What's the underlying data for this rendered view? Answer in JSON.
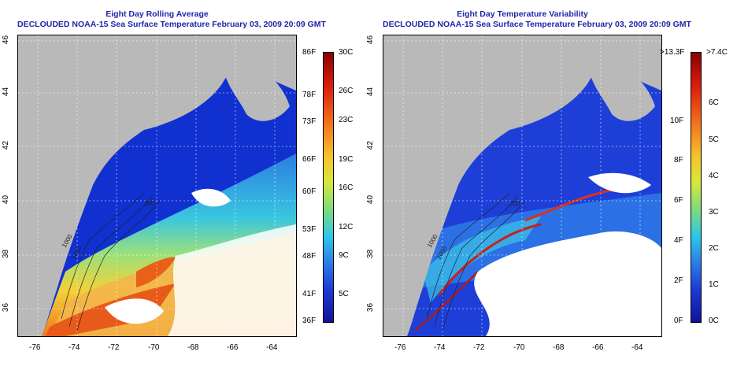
{
  "left_panel": {
    "title_line1": "Eight Day Rolling Average",
    "title_line2": "DECLOUDED NOAA-15 Sea Surface Temperature February 03, 2009 20:09 GMT",
    "lon_ticks": [
      "-76",
      "-74",
      "-72",
      "-70",
      "-68",
      "-66",
      "-64"
    ],
    "lat_ticks": [
      "46",
      "44",
      "42",
      "40",
      "38",
      "36"
    ],
    "colorbar_f": [
      "86F",
      "78F",
      "73F",
      "66F",
      "60F",
      "53F",
      "48F",
      "41F",
      "36F"
    ],
    "colorbar_c": [
      "30C",
      "26C",
      "23C",
      "19C",
      "16C",
      "12C",
      "9C",
      "5C"
    ],
    "contour_labels": [
      "200",
      "1000",
      "2000"
    ]
  },
  "right_panel": {
    "title_line1": "Eight Day Temperature Variability",
    "title_line2": "DECLOUDED NOAA-15 Sea Surface Temperature February 03, 2009 20:09 GMT",
    "lon_ticks": [
      "-76",
      "-74",
      "-72",
      "-70",
      "-68",
      "-66",
      "-64"
    ],
    "lat_ticks": [
      "46",
      "44",
      "42",
      "40",
      "38",
      "36"
    ],
    "colorbar_f": [
      ">13.3F",
      "10F",
      "8F",
      "6F",
      "4F",
      "2F",
      "0F"
    ],
    "colorbar_c": [
      ">7.4C",
      "6C",
      "5C",
      "4C",
      "3C",
      "2C",
      "1C",
      "0C"
    ],
    "contour_labels": [
      "200",
      "1000",
      "2000"
    ]
  },
  "colors": {
    "land": "#b9b9b9",
    "cloud": "#ffffff",
    "title": "#1f27a8"
  }
}
